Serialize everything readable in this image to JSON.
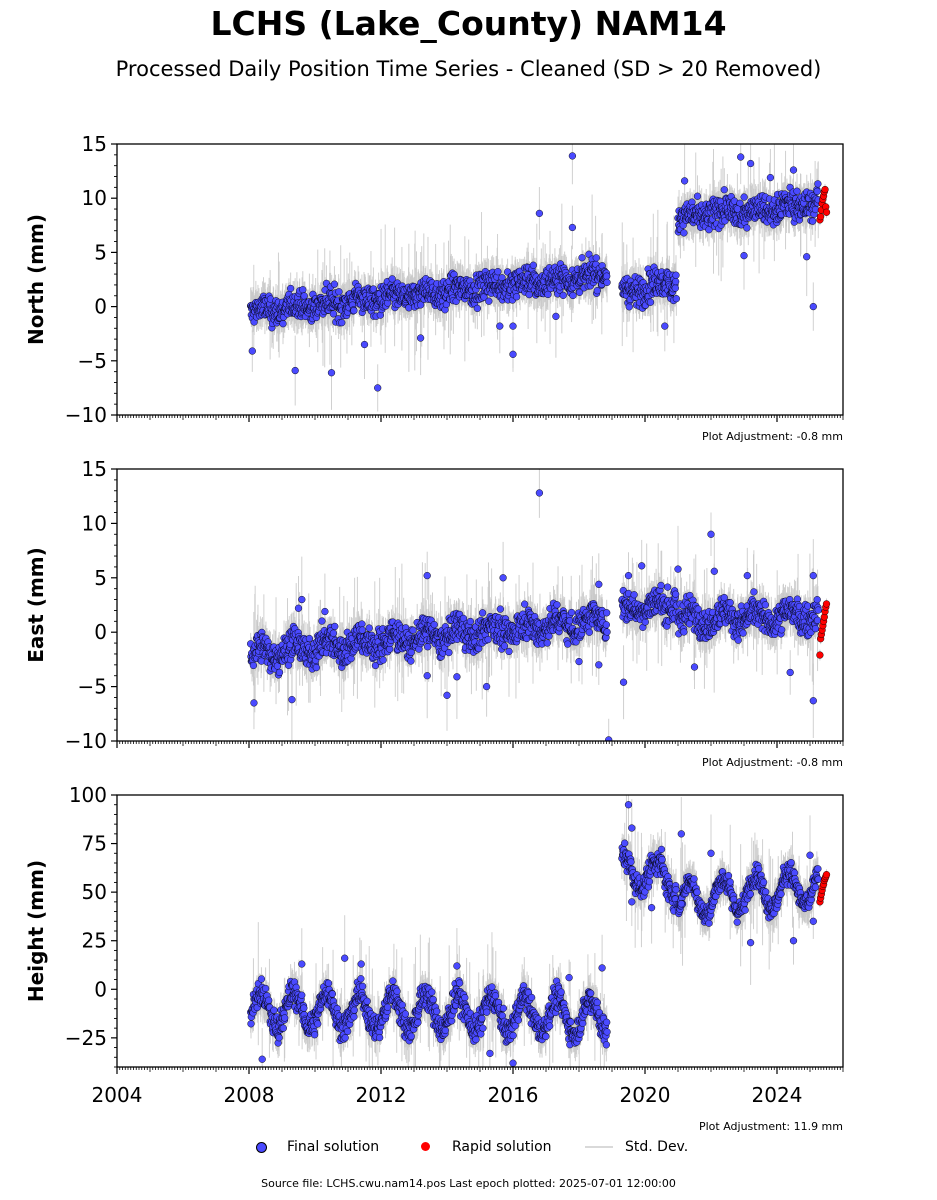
{
  "title": "LCHS (Lake_County) NAM14",
  "subtitle": "Processed Daily Position Time Series - Cleaned (SD > 20 Removed)",
  "legend": {
    "final": "Final solution",
    "rapid": "Rapid solution",
    "std": "Std. Dev."
  },
  "footer": "Source file: LCHS.cwu.nam14.pos  Last epoch plotted: 2025-07-01 12:00:00",
  "colors": {
    "final": "#4a4aff",
    "rapid": "#ff0000",
    "errorbar": "#c8c8c8",
    "marker_edge": "#000000"
  },
  "chart_data": [
    {
      "type": "scatter",
      "ylabel": "North (mm)",
      "xlim": [
        2004,
        2026
      ],
      "ylim": [
        -10,
        15
      ],
      "yticks": [
        -10,
        -5,
        0,
        5,
        10,
        15
      ],
      "adjustment": "Plot Adjustment: -0.8 mm",
      "show_xticklabels": false,
      "segments": [
        {
          "from": 2008.05,
          "to": 2018.85,
          "start": -0.5,
          "end": 3.0,
          "spread": 1.2,
          "amp": 0.3
        },
        {
          "from": 2019.3,
          "to": 2020.95,
          "start": 1.3,
          "end": 2.3,
          "spread": 1.3,
          "amp": 0.3
        },
        {
          "from": 2021.0,
          "to": 2025.25,
          "start": 8.2,
          "end": 9.6,
          "spread": 1.2,
          "amp": 0.3
        }
      ],
      "outliers": [
        [
          2008.1,
          -4.1
        ],
        [
          2009.4,
          -5.9
        ],
        [
          2010.5,
          -6.1
        ],
        [
          2011.9,
          -7.5
        ],
        [
          2011.5,
          -3.5
        ],
        [
          2013.2,
          -2.9
        ],
        [
          2015.6,
          -1.8
        ],
        [
          2016.0,
          -4.4
        ],
        [
          2016.0,
          -1.8
        ],
        [
          2016.8,
          8.6
        ],
        [
          2017.3,
          -0.9
        ],
        [
          2017.8,
          13.9
        ],
        [
          2017.8,
          7.3
        ],
        [
          2020.6,
          -1.8
        ],
        [
          2022.9,
          13.8
        ],
        [
          2023.2,
          13.2
        ],
        [
          2022.8,
          9.0
        ],
        [
          2025.1,
          0.0
        ],
        [
          2024.9,
          4.6
        ],
        [
          2023.0,
          4.7
        ],
        [
          2021.2,
          11.6
        ],
        [
          2023.8,
          11.9
        ],
        [
          2024.5,
          12.6
        ]
      ],
      "rapid": {
        "from": 2025.3,
        "to": 2025.5,
        "values": [
          8.0,
          8.3,
          8.9,
          9.5,
          9.9,
          10.2,
          10.6,
          10.8,
          9.2,
          8.7
        ]
      },
      "legend": [
        {
          "label": "Final solution"
        },
        {
          "label": "Rapid solution"
        },
        {
          "label": "Std. Dev."
        }
      ]
    },
    {
      "type": "scatter",
      "ylabel": "East (mm)",
      "xlim": [
        2004,
        2026
      ],
      "ylim": [
        -10,
        15
      ],
      "yticks": [
        -10,
        -5,
        0,
        5,
        10,
        15
      ],
      "adjustment": "Plot Adjustment: -0.8 mm",
      "show_xticklabels": false,
      "segments": [
        {
          "from": 2008.05,
          "to": 2018.85,
          "start": -2.0,
          "end": 1.2,
          "spread": 1.3,
          "amp": 0.6
        },
        {
          "from": 2019.3,
          "to": 2020.95,
          "start": 2.2,
          "end": 2.5,
          "spread": 1.3,
          "amp": 0.5
        },
        {
          "from": 2021.0,
          "to": 2025.25,
          "start": 1.3,
          "end": 1.5,
          "spread": 1.3,
          "amp": 0.6
        }
      ],
      "outliers": [
        [
          2008.15,
          -6.5
        ],
        [
          2009.3,
          -6.2
        ],
        [
          2009.5,
          2.2
        ],
        [
          2009.6,
          3.0
        ],
        [
          2010.3,
          1.9
        ],
        [
          2013.4,
          -4.0
        ],
        [
          2013.4,
          5.2
        ],
        [
          2014.0,
          -5.8
        ],
        [
          2014.3,
          -4.1
        ],
        [
          2015.2,
          -5.0
        ],
        [
          2015.7,
          5.0
        ],
        [
          2016.8,
          12.8
        ],
        [
          2018.0,
          -2.7
        ],
        [
          2018.6,
          -3.0
        ],
        [
          2018.9,
          -9.9
        ],
        [
          2018.6,
          4.4
        ],
        [
          2019.35,
          -4.6
        ],
        [
          2019.5,
          5.2
        ],
        [
          2019.9,
          6.1
        ],
        [
          2021.0,
          5.8
        ],
        [
          2022.0,
          9.0
        ],
        [
          2022.1,
          5.6
        ],
        [
          2023.1,
          5.2
        ],
        [
          2024.4,
          -3.7
        ],
        [
          2025.1,
          -6.3
        ],
        [
          2025.1,
          5.2
        ],
        [
          2021.5,
          -3.2
        ]
      ],
      "rapid": {
        "from": 2025.3,
        "to": 2025.5,
        "values": [
          -2.1,
          -0.6,
          -0.2,
          0.2,
          0.6,
          1.0,
          1.4,
          1.9,
          2.3,
          2.6
        ]
      }
    },
    {
      "type": "scatter",
      "ylabel": "Height (mm)",
      "xlim": [
        2004,
        2026
      ],
      "ylim": [
        -40,
        100
      ],
      "yticks": [
        -25,
        0,
        25,
        50,
        75,
        100
      ],
      "adjustment": "Plot Adjustment: 11.9 mm",
      "show_xticklabels": true,
      "xticks": [
        2004,
        2008,
        2012,
        2016,
        2020,
        2024
      ],
      "segments": [
        {
          "from": 2008.05,
          "to": 2018.85,
          "start": -10,
          "end": -14,
          "spread": 6,
          "amp": 9
        },
        {
          "from": 2019.3,
          "to": 2020.95,
          "start": 62,
          "end": 56,
          "spread": 6,
          "amp": 8
        },
        {
          "from": 2021.0,
          "to": 2025.25,
          "start": 46,
          "end": 53,
          "spread": 5,
          "amp": 9
        }
      ],
      "outliers": [
        [
          2008.4,
          -36
        ],
        [
          2009.6,
          13
        ],
        [
          2010.9,
          16
        ],
        [
          2011.4,
          13
        ],
        [
          2014.3,
          12
        ],
        [
          2015.3,
          -33
        ],
        [
          2016.0,
          -38
        ],
        [
          2017.7,
          6
        ],
        [
          2018.7,
          11
        ],
        [
          2019.5,
          95
        ],
        [
          2019.6,
          83
        ],
        [
          2019.6,
          45
        ],
        [
          2020.2,
          42
        ],
        [
          2020.5,
          72
        ],
        [
          2021.1,
          80
        ],
        [
          2021.1,
          44
        ],
        [
          2022.0,
          70
        ],
        [
          2023.2,
          24
        ],
        [
          2024.5,
          25
        ],
        [
          2025.1,
          35
        ],
        [
          2025.0,
          69
        ]
      ],
      "rapid": {
        "from": 2025.3,
        "to": 2025.5,
        "values": [
          45,
          47,
          49,
          51,
          53,
          54,
          56,
          57,
          58,
          59
        ]
      }
    }
  ]
}
